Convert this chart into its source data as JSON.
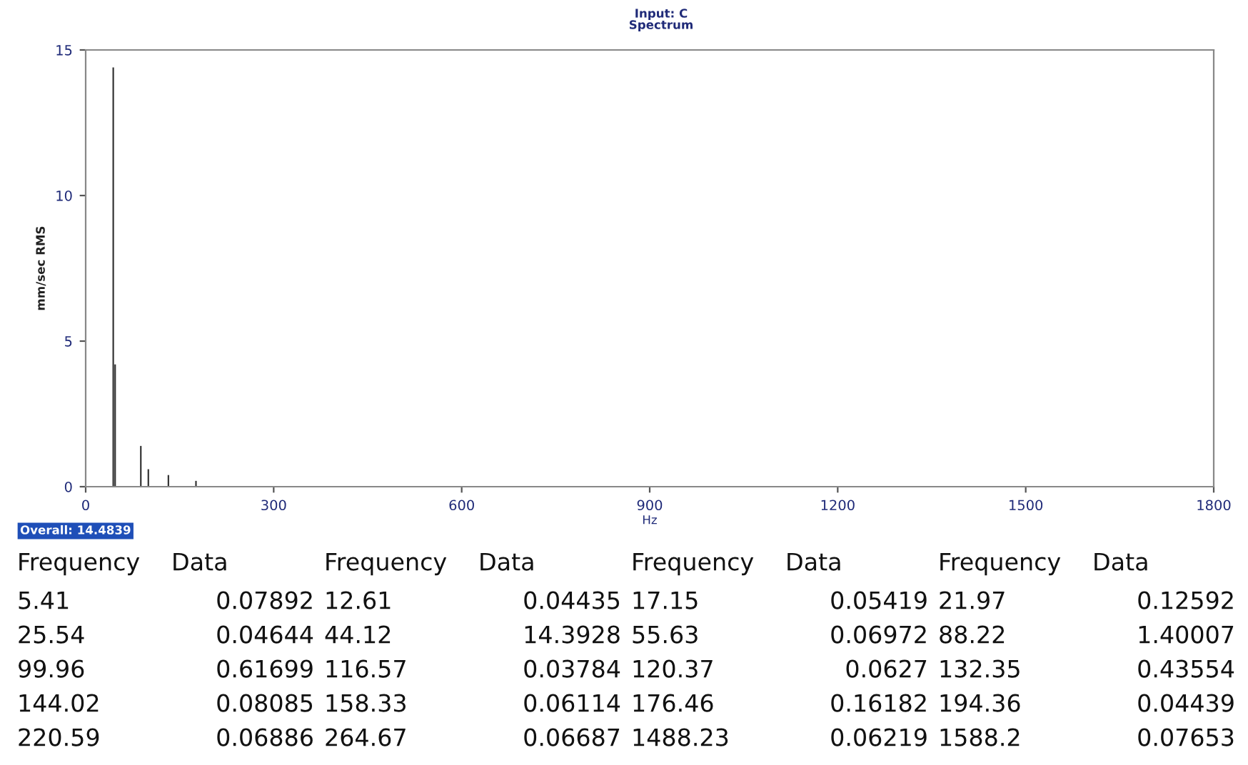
{
  "chart_data": [
    {
      "type": "bar",
      "title": "Input: C",
      "subtitle": "Spectrum",
      "xlabel": "Hz",
      "ylabel": "mm/sec RMS",
      "xlim": [
        0,
        1800
      ],
      "xticks": [
        0,
        300,
        600,
        900,
        1200,
        1500,
        1800
      ],
      "ylim": [
        0,
        15
      ],
      "yticks": [
        0,
        5,
        10,
        15
      ],
      "grid": false,
      "annotations": [
        "Overall: 14.4839"
      ],
      "series": [
        {
          "color": "#333333",
          "x": [
            44,
            47,
            88,
            100,
            132,
            176
          ],
          "values": [
            14.4,
            4.2,
            1.4,
            0.6,
            0.4,
            0.2
          ]
        }
      ]
    },
    {
      "type": "other",
      "annotations": [
        "Frequency",
        "Data",
        "Frequency",
        "Data",
        "Frequency",
        "Data",
        "Frequency",
        "Data",
        "5.41",
        "0.07892",
        "12.61",
        "0.04435",
        "17.15",
        "0.05419",
        "21.97",
        "0.12592",
        "25.54",
        "0.04644",
        "44.12",
        "14.3928",
        "55.63",
        "0.06972",
        "88.22",
        "1.40007",
        "99.96",
        "0.61699",
        "116.57",
        "0.03784",
        "120.37",
        "0.0627",
        "132.35",
        "0.43554",
        "144.02",
        "0.08085",
        "158.33",
        "0.06114",
        "176.46",
        "0.16182",
        "194.36",
        "0.04439",
        "220.59",
        "0.06886",
        "264.67",
        "0.06687",
        "1488.23",
        "0.06219",
        "1588.2",
        "0.07653"
      ]
    }
  ]
}
